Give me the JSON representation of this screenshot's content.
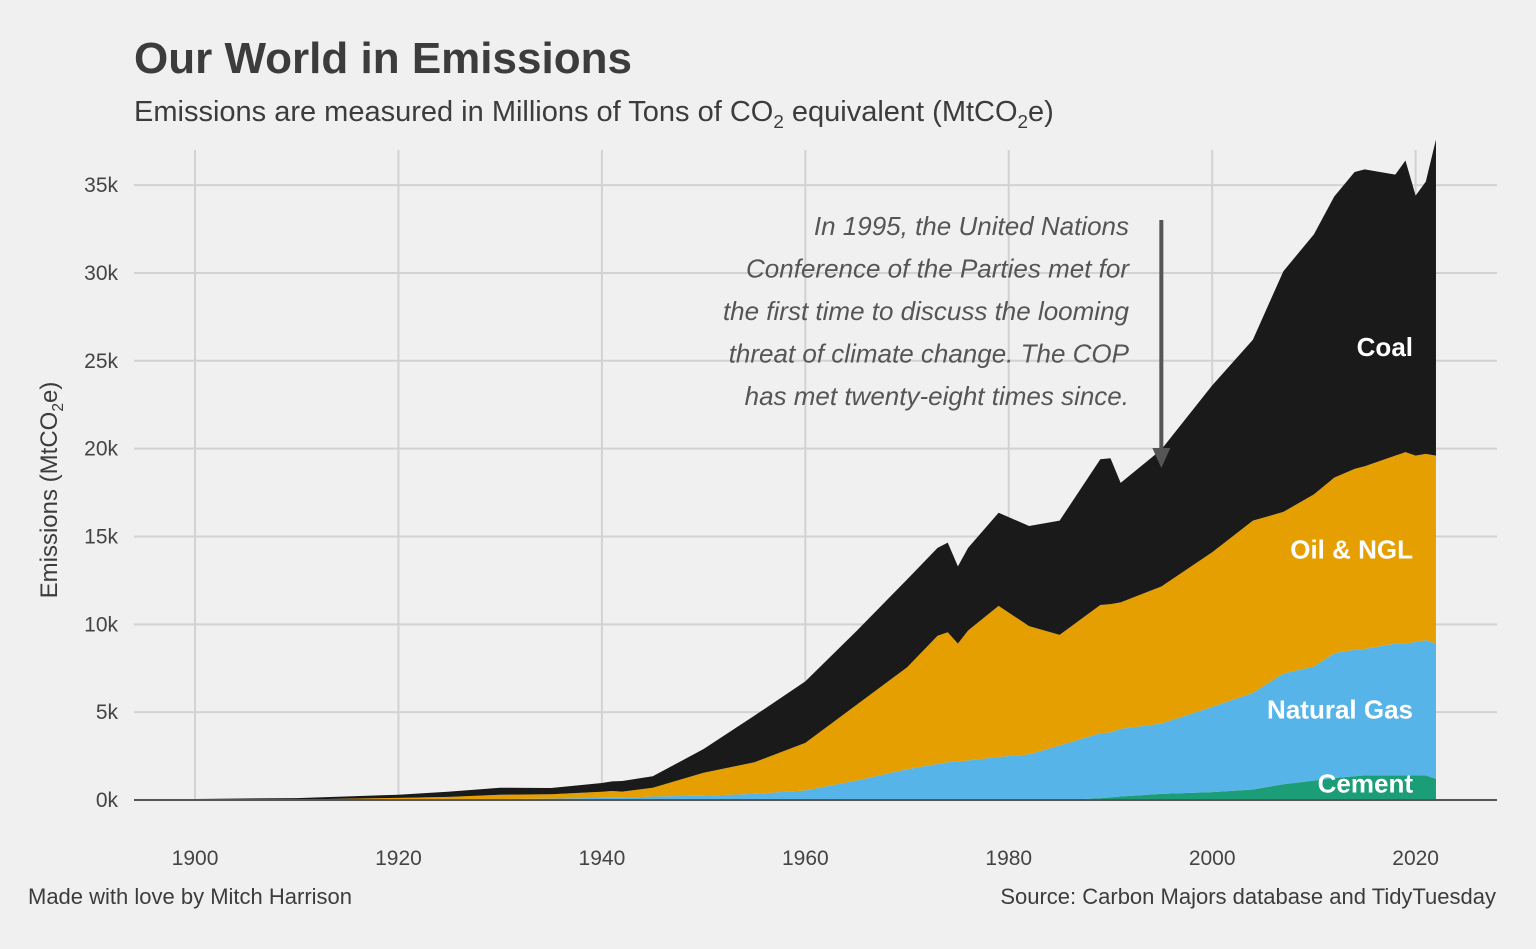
{
  "title": "Our World in Emissions",
  "subtitle_pre": "Emissions are measured in Millions of Tons of CO",
  "subtitle_sub": "2",
  "subtitle_mid": " equivalent (MtCO",
  "subtitle_sub2": "2",
  "subtitle_post": "e)",
  "y_title_pre": "Emissions (MtCO",
  "y_title_sub": "2",
  "y_title_post": "e)",
  "credit": "Made with love by Mitch Harrison",
  "source": "Source: Carbon Majors database and TidyTuesday",
  "annotation": [
    "In 1995, the United Nations",
    "Conference of the Parties met for",
    "the first time to discuss the looming",
    "threat of climate change. The COP",
    "has met twenty-eight times since."
  ],
  "annotation_arrow_year": 1995,
  "chart_data": {
    "type": "area",
    "stacked": true,
    "xlim": [
      1894,
      2028
    ],
    "ylim": [
      0,
      37000
    ],
    "x_ticks": [
      1900,
      1920,
      1940,
      1960,
      1980,
      2000,
      2020
    ],
    "x_tick_labels": [
      "1900",
      "1920",
      "1940",
      "1960",
      "1980",
      "2000",
      "2020"
    ],
    "y_ticks": [
      0,
      5000,
      10000,
      15000,
      20000,
      25000,
      30000,
      35000
    ],
    "y_tick_labels": [
      "0k",
      "5k",
      "10k",
      "15k",
      "20k",
      "25k",
      "30k",
      "35k"
    ],
    "grid": true,
    "legend": "inline labels at right end of each area",
    "x": [
      1900,
      1910,
      1920,
      1925,
      1930,
      1935,
      1940,
      1941,
      1942,
      1945,
      1950,
      1955,
      1960,
      1965,
      1970,
      1973,
      1974,
      1975,
      1976,
      1979,
      1982,
      1985,
      1989,
      1990,
      1991,
      1995,
      2000,
      2004,
      2007,
      2010,
      2012,
      2014,
      2015,
      2018,
      2019,
      2020,
      2021,
      2022
    ],
    "series": [
      {
        "name": "Cement",
        "color": "#1b9e77",
        "values": [
          0,
          0,
          0,
          0,
          0,
          0,
          0,
          0,
          0,
          0,
          0,
          0,
          0,
          0,
          0,
          0,
          0,
          0,
          0,
          0,
          0,
          0,
          100,
          150,
          200,
          350,
          450,
          600,
          900,
          1100,
          1250,
          1350,
          1400,
          1400,
          1400,
          1400,
          1400,
          1200
        ]
      },
      {
        "name": "Natural Gas",
        "color": "#56b4e9",
        "values": [
          0,
          0,
          20,
          30,
          50,
          80,
          120,
          130,
          130,
          200,
          250,
          350,
          550,
          1100,
          1750,
          2050,
          2150,
          2200,
          2250,
          2450,
          2600,
          3100,
          3700,
          3700,
          3850,
          4000,
          4850,
          5500,
          6300,
          6500,
          7100,
          7200,
          7200,
          7500,
          7500,
          7600,
          7700,
          7700
        ]
      },
      {
        "name": "Oil & NGL",
        "color": "#e69f00",
        "values": [
          10,
          30,
          100,
          150,
          250,
          250,
          350,
          380,
          350,
          500,
          1300,
          1800,
          2700,
          4300,
          5800,
          7300,
          7400,
          6700,
          7400,
          8600,
          7300,
          6300,
          7300,
          7300,
          7200,
          7800,
          8800,
          9800,
          9200,
          9800,
          10000,
          10300,
          10400,
          10700,
          10900,
          10600,
          10600,
          10700
        ]
      },
      {
        "name": "Coal",
        "color": "#1a1a1a",
        "values": [
          50,
          80,
          180,
          300,
          400,
          350,
          500,
          550,
          600,
          650,
          1350,
          2650,
          3500,
          4200,
          5000,
          5000,
          5100,
          4400,
          4700,
          5300,
          5700,
          6500,
          8300,
          8300,
          6800,
          7800,
          9500,
          10300,
          13700,
          14800,
          16000,
          16900,
          16900,
          16000,
          16600,
          14800,
          15500,
          18000
        ]
      }
    ],
    "area_labels": [
      "Coal",
      "Oil & NGL",
      "Natural Gas",
      "Cement"
    ]
  }
}
